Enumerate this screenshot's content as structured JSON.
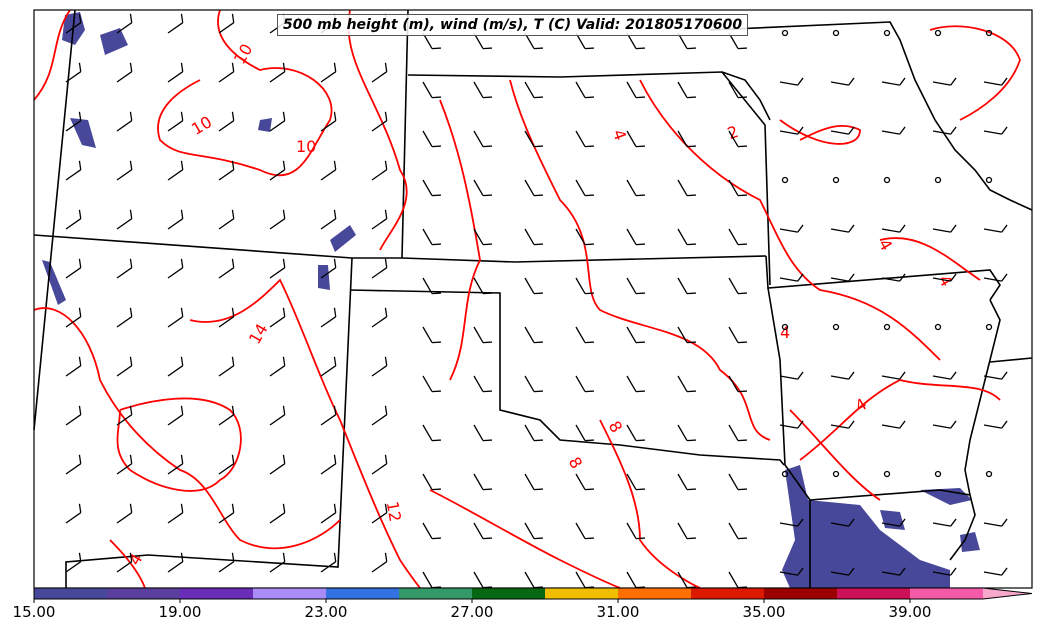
{
  "title": "500 mb height (m), wind (m/s), T (C) Valid: 201805170600",
  "contour_labels": [
    "10",
    "10",
    "10",
    "14",
    "4",
    "2",
    "4",
    "4",
    "4",
    "4",
    "8",
    "8",
    "12",
    "4"
  ],
  "colorbar": {
    "ticks": [
      "15.00",
      "19.00",
      "23.00",
      "27.00",
      "31.00",
      "35.00",
      "39.00"
    ],
    "min": 15,
    "max": 41,
    "step": 2,
    "colors": [
      "#48489a",
      "#5b3f9e",
      "#6a2db8",
      "#a98cf8",
      "#3372e0",
      "#339966",
      "#066812",
      "#f0c000",
      "#ff7000",
      "#dd1a00",
      "#9a0000",
      "#cc1158",
      "#f35aa8"
    ],
    "extend_color": "#f8a8cc"
  },
  "colors": {
    "contour": "#ff0000",
    "border": "#000000",
    "shade": "#48489a"
  }
}
